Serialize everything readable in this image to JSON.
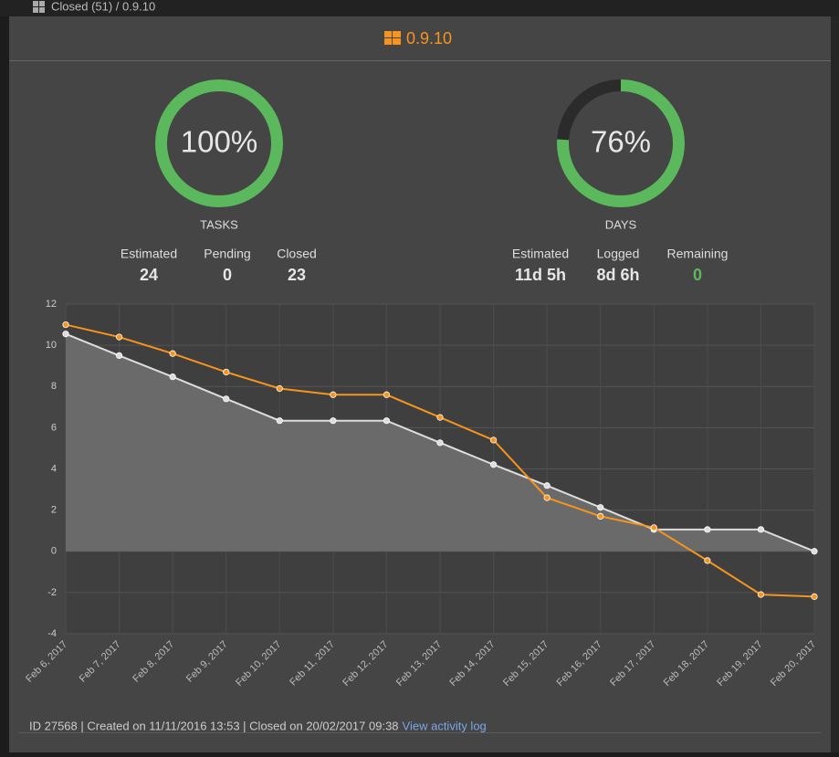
{
  "topbar": {
    "title": "Closed (51) / 0.9.10"
  },
  "header": {
    "title": "0.9.10"
  },
  "donuts": [
    {
      "value": 100,
      "label": "100%",
      "caption": "TASKS",
      "color": "#5cb85c",
      "stats": [
        {
          "label": "Estimated",
          "value": 24
        },
        {
          "label": "Pending",
          "value": 0
        },
        {
          "label": "Closed",
          "value": 23
        }
      ]
    },
    {
      "value": 76,
      "label": "76%",
      "caption": "DAYS",
      "color": "#5cb85c",
      "stats": [
        {
          "label": "Estimated",
          "value": "11d 5h"
        },
        {
          "label": "Logged",
          "value": "8d 6h"
        },
        {
          "label": "Remaining",
          "value": 0,
          "color": "#5cb85c"
        }
      ]
    }
  ],
  "chart_data": {
    "type": "line",
    "categories": [
      "Feb 6, 2017",
      "Feb 7, 2017",
      "Feb 8, 2017",
      "Feb 9, 2017",
      "Feb 10, 2017",
      "Feb 11, 2017",
      "Feb 12, 2017",
      "Feb 13, 2017",
      "Feb 14, 2017",
      "Feb 15, 2017",
      "Feb 16, 2017",
      "Feb 17, 2017",
      "Feb 18, 2017",
      "Feb 19, 2017",
      "Feb 20, 2017"
    ],
    "series": [
      {
        "color": "#dddddd",
        "fill": "#6a6a6a",
        "values": [
          10.55,
          9.5,
          8.47,
          7.4,
          6.34,
          6.34,
          6.34,
          5.27,
          4.21,
          3.19,
          2.13,
          1.06,
          1.06,
          1.06,
          0
        ]
      },
      {
        "color": "#f7941d",
        "values": [
          11.0,
          10.4,
          9.6,
          8.7,
          7.9,
          7.6,
          7.6,
          6.5,
          5.4,
          2.6,
          1.7,
          1.15,
          -0.45,
          -2.1,
          -2.2
        ]
      }
    ],
    "ylim": [
      -4,
      12
    ],
    "yticks": [
      -4,
      -2,
      0,
      2,
      4,
      6,
      8,
      10,
      12
    ],
    "grid": true
  },
  "footer": {
    "text": "ID 27568 | Created on 11/11/2016 13:53 | Closed on 20/02/2017 09:38",
    "link": "View activity log"
  }
}
